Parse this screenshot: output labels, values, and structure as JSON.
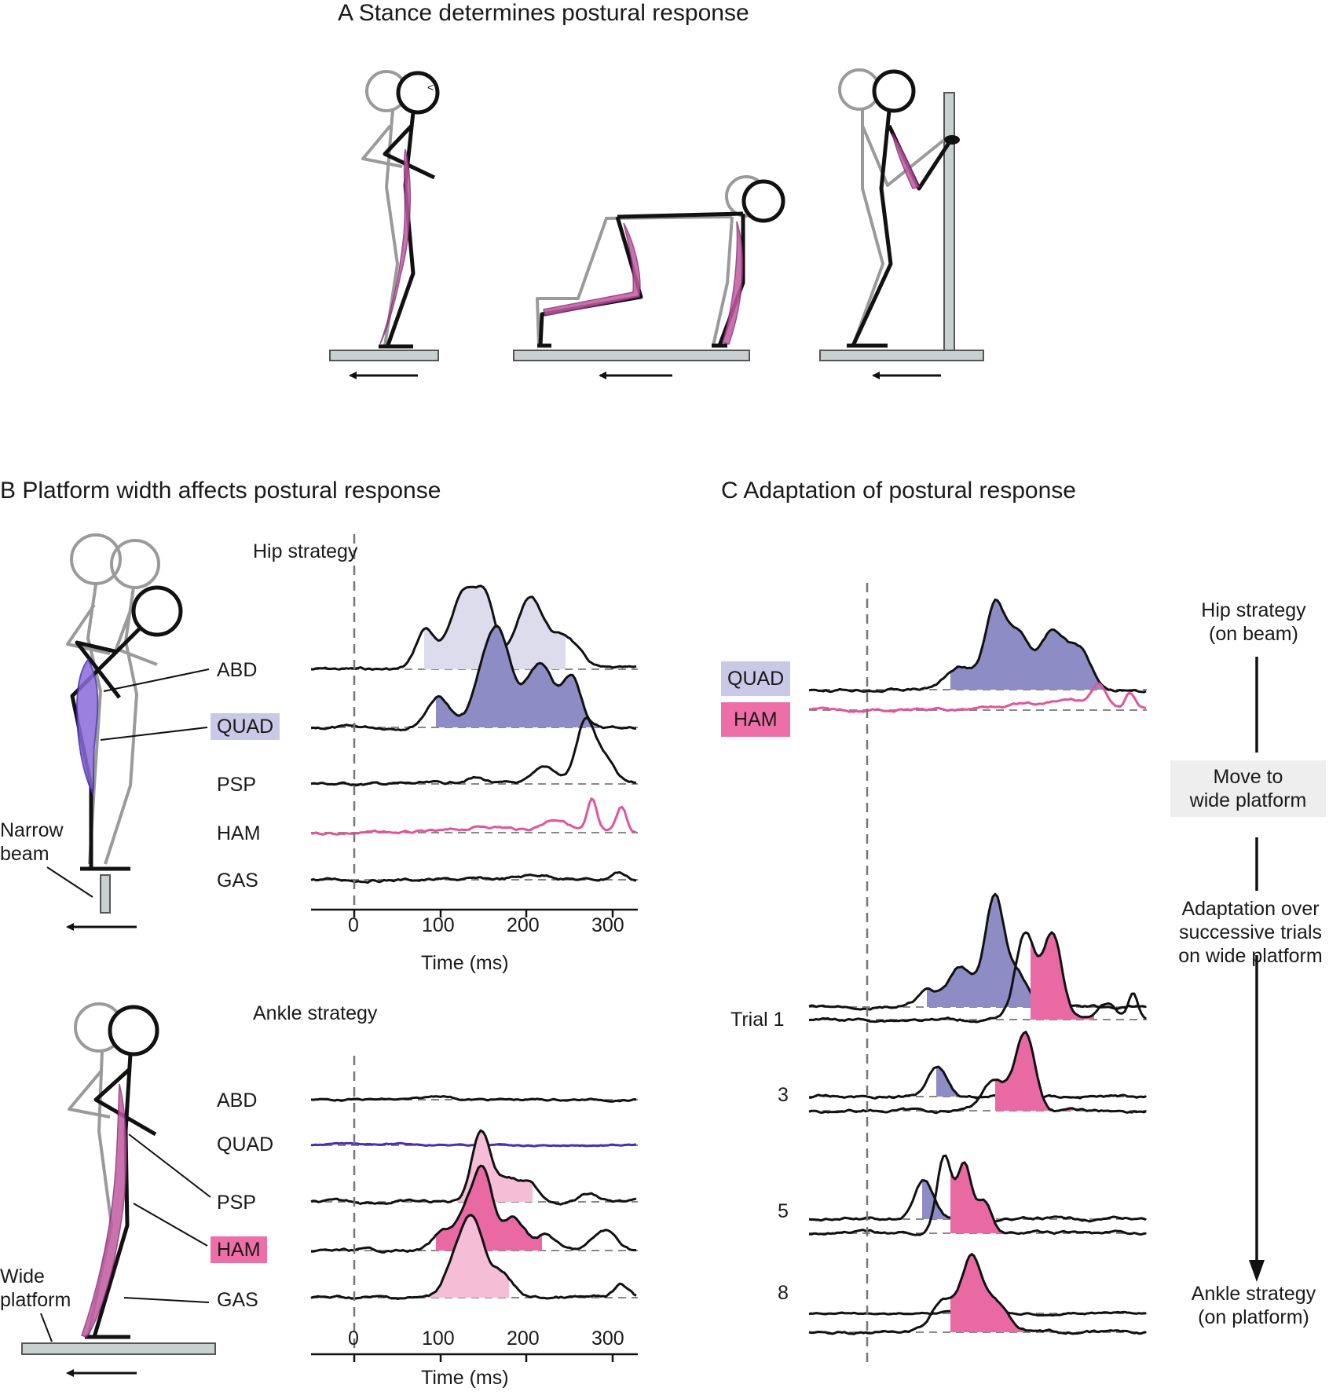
{
  "panelA": {
    "title": "A  Stance determines postural response"
  },
  "panelB": {
    "title": "B  Platform width affects postural response",
    "hip": {
      "heading": "Hip strategy",
      "muscles": [
        "ABD",
        "QUAD",
        "PSP",
        "HAM",
        "GAS"
      ],
      "highlighted_muscle": "QUAD",
      "support_label": "Narrow\nbeam"
    },
    "ankle": {
      "heading": "Ankle strategy",
      "muscles": [
        "ABD",
        "QUAD",
        "PSP",
        "HAM",
        "GAS"
      ],
      "highlighted_muscle": "HAM",
      "support_label": "Wide\nplatform"
    },
    "axis": {
      "ticks": [
        "0",
        "100",
        "200",
        "300"
      ],
      "label": "Time (ms)"
    }
  },
  "panelC": {
    "title": "C  Adaptation of postural response",
    "legend": [
      "QUAD",
      "HAM"
    ],
    "trials": [
      "Trial 1",
      "3",
      "5",
      "8"
    ],
    "side": {
      "top": "Hip strategy\n(on beam)",
      "move": "Move to\nwide platform",
      "adapt": "Adaptation over\nsuccessive trials\non wide platform",
      "bottom": "Ankle strategy\n(on platform)"
    }
  },
  "colors": {
    "quad_fill": "#8d8cc5",
    "quad_light": "#dcdcec",
    "ham_fill": "#e96aa3",
    "ham_light": "#f5bed6",
    "ham_trace": "#e0559a",
    "quad_trace": "#4a2fb0",
    "badge_quad": "#c9c8e6",
    "badge_ham": "#ee6fa8",
    "figure_gray": "#9a9a9a",
    "platform": "#c8d1d0"
  }
}
